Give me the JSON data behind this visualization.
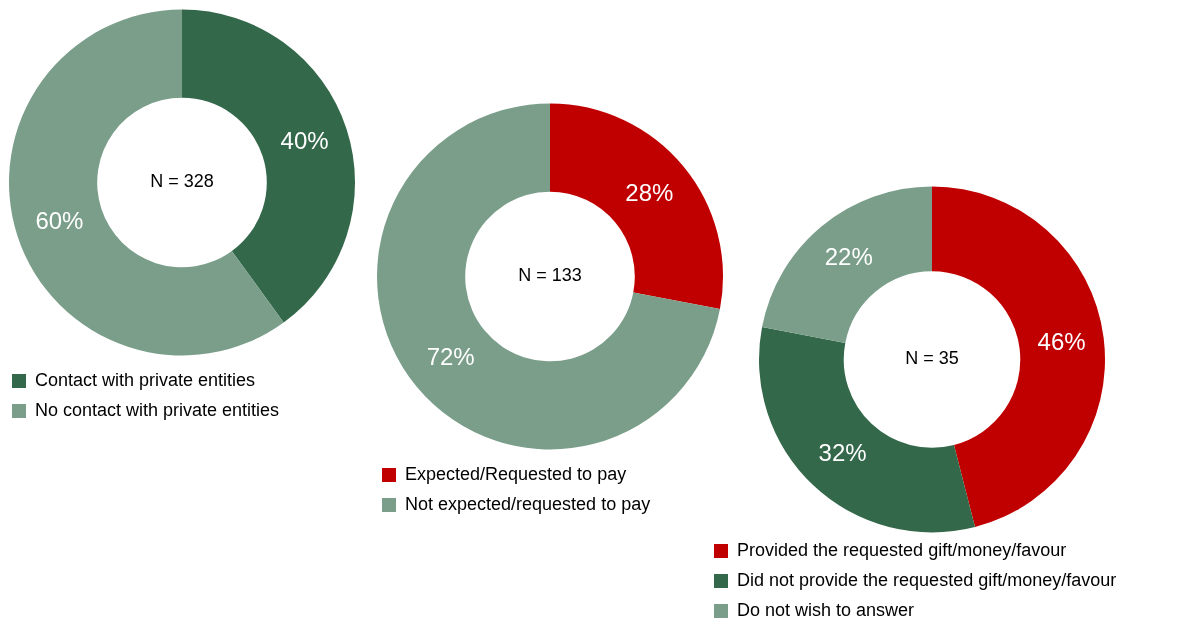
{
  "chart_data": [
    {
      "type": "donut",
      "categories": [
        "Contact with private entities",
        "No contact with private entities"
      ],
      "values": [
        40,
        60
      ],
      "colors": [
        "#33684a",
        "#7a9e8a"
      ],
      "value_labels": [
        "40%",
        "60%"
      ],
      "annotations": [
        "N = 328"
      ],
      "legend": "bottom"
    },
    {
      "type": "donut",
      "categories": [
        "Expected/Requested to pay",
        "Not expected/requested to pay"
      ],
      "values": [
        28,
        72
      ],
      "colors": [
        "#c00000",
        "#7a9e8a"
      ],
      "value_labels": [
        "28%",
        "72%"
      ],
      "annotations": [
        "N = 133"
      ],
      "legend": "bottom"
    },
    {
      "type": "donut",
      "categories": [
        "Provided the requested gift/money/favour",
        "Did not provide the requested gift/money/favour",
        "Do not wish to answer"
      ],
      "values": [
        46,
        32,
        22
      ],
      "colors": [
        "#c00000",
        "#33684a",
        "#7a9e8a"
      ],
      "value_labels": [
        "46%",
        "32%",
        "22%"
      ],
      "annotations": [
        "N = 35"
      ],
      "legend": "bottom"
    }
  ]
}
